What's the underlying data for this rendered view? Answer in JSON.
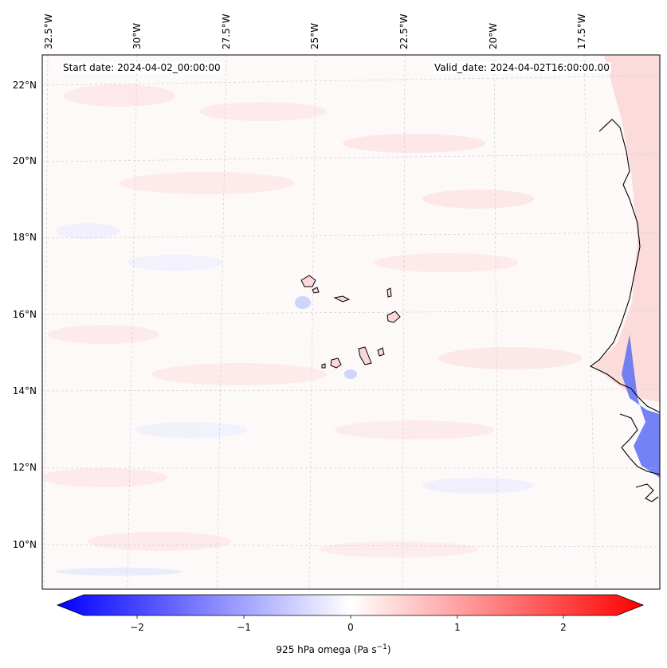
{
  "map": {
    "start_label": "Start date: 2024-04-02_00:00:00",
    "valid_label": "Valid_date: 2024-04-02T16:00:00.00",
    "lon_labels": [
      "32.5°W",
      "30°W",
      "27.5°W",
      "25°W",
      "22.5°W",
      "20°W",
      "17.5°W"
    ],
    "lat_labels": [
      "22°N",
      "20°N",
      "18°N",
      "16°N",
      "14°N",
      "12°N",
      "10°N"
    ],
    "field": "925 hPa omega",
    "colormap": "bwr",
    "colors": {
      "negative": "#0000ff",
      "zero": "#ffffff",
      "positive": "#ff0000",
      "coast": "#000000"
    }
  },
  "colorbar": {
    "ticks": [
      "−2",
      "−1",
      "0",
      "1",
      "2"
    ],
    "tick_values": [
      -2,
      -1,
      0,
      1,
      2
    ],
    "range": [
      -2.5,
      2.5
    ],
    "extend": "both",
    "label_text": "925 hPa omega (Pa s",
    "label_sup": "−1",
    "label_close": ")"
  }
}
